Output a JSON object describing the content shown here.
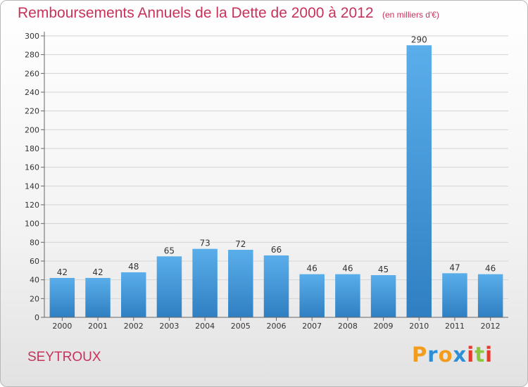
{
  "title": {
    "main": "Remboursements Annuels de la Dette de 2000 à 2012",
    "unit": "(en milliers d'€)"
  },
  "commune": "SEYTROUX",
  "logo": {
    "letters": [
      "P",
      "r",
      "o",
      "x",
      "i",
      "t",
      "i"
    ],
    "colors": [
      "#f39b1c",
      "#2d8fd6",
      "#f39b1c",
      "#2d8fd6",
      "#e53a2e",
      "#8cc63f",
      "#e53a2e"
    ]
  },
  "chart_data": {
    "type": "bar",
    "categories": [
      "2000",
      "2001",
      "2002",
      "2003",
      "2004",
      "2005",
      "2006",
      "2007",
      "2008",
      "2009",
      "2010",
      "2011",
      "2012"
    ],
    "values": [
      42,
      42,
      48,
      65,
      73,
      72,
      66,
      46,
      46,
      45,
      290,
      47,
      46
    ],
    "title": "Remboursements Annuels de la Dette de 2000 à 2012",
    "subtitle": "(en milliers d'€)",
    "xlabel": "",
    "ylabel": "",
    "ylim": [
      0,
      300
    ],
    "yticks": [
      0,
      20,
      40,
      60,
      80,
      100,
      120,
      140,
      160,
      180,
      200,
      220,
      240,
      260,
      280,
      300
    ],
    "grid": "horizontal",
    "bar_color": "#4a9fe0"
  }
}
